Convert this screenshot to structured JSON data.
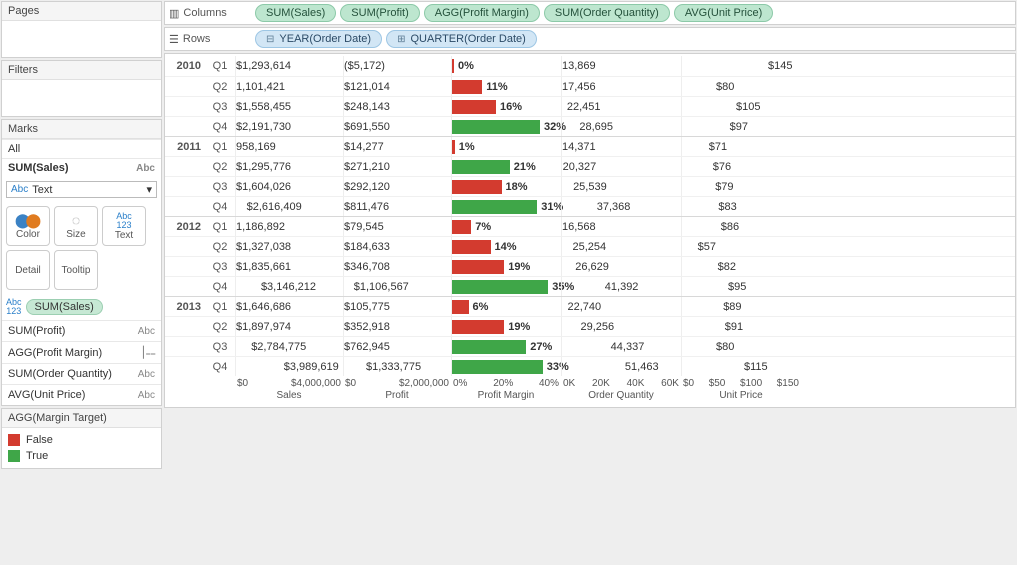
{
  "left": {
    "pages_title": "Pages",
    "filters_title": "Filters",
    "marks_title": "Marks",
    "marks_all": "All",
    "marks_sum_sales": "SUM(Sales)",
    "abc": "Abc",
    "mark_type": "Text",
    "btn_color": "Color",
    "btn_size": "Size",
    "btn_text": "Text",
    "btn_detail": "Detail",
    "btn_tooltip": "Tooltip",
    "text_pill": "SUM(Sales)",
    "agg": [
      {
        "label": "SUM(Profit)",
        "tag": "Abc"
      },
      {
        "label": "AGG(Profit Margin)",
        "tag": "bar"
      },
      {
        "label": "SUM(Order Quantity)",
        "tag": "Abc"
      },
      {
        "label": "AVG(Unit Price)",
        "tag": "Abc"
      }
    ],
    "legend_title": "AGG(Margin Target)",
    "legend_false": "False",
    "legend_true": "True",
    "color_false": "#d33b2f",
    "color_true": "#3fa648"
  },
  "shelves": {
    "columns_label": "Columns",
    "rows_label": "Rows",
    "columns": [
      "SUM(Sales)",
      "SUM(Profit)",
      "AGG(Profit Margin)",
      "SUM(Order Quantity)",
      "AVG(Unit Price)"
    ],
    "rows": [
      "YEAR(Order Date)",
      "QUARTER(Order Date)"
    ]
  },
  "viz": {
    "sales_max": 4000000,
    "profit_max": 2000000,
    "margin_max": 0.4,
    "qty_max": 60000,
    "price_max": 150,
    "margin_threshold": 0.2,
    "colors": {
      "bar_false": "#d33b2f",
      "bar_true": "#3fa648"
    },
    "axis": {
      "sales": {
        "ticks": [
          "$0",
          "$4,000,000"
        ],
        "title": "Sales"
      },
      "profit": {
        "ticks": [
          "$0",
          "$2,000,000"
        ],
        "title": "Profit"
      },
      "margin": {
        "ticks": [
          "0%",
          "20%",
          "40%"
        ],
        "title": "Profit Margin"
      },
      "qty": {
        "ticks": [
          "0K",
          "20K",
          "40K",
          "60K"
        ],
        "title": "Order Quantity"
      },
      "price": {
        "ticks": [
          "$0",
          "$50",
          "$100",
          "$150"
        ],
        "title": "Unit Price"
      }
    },
    "rows": [
      {
        "year": "2010",
        "q": "Q1",
        "sales": 1293614,
        "sales_txt": "$1,293,614",
        "profit": -5172,
        "profit_txt": "($5,172)",
        "margin": 0.0,
        "margin_txt": "0%",
        "qty": 13869,
        "qty_txt": "13,869",
        "price": 145,
        "price_txt": "$145"
      },
      {
        "year": "2010",
        "q": "Q2",
        "sales": 1101421,
        "sales_txt": "1,101,421",
        "profit": 121014,
        "profit_txt": "$121,014",
        "margin": 0.11,
        "margin_txt": "11%",
        "qty": 17456,
        "qty_txt": "17,456",
        "price": 80,
        "price_txt": "$80"
      },
      {
        "year": "2010",
        "q": "Q3",
        "sales": 1558455,
        "sales_txt": "$1,558,455",
        "profit": 248143,
        "profit_txt": "$248,143",
        "margin": 0.16,
        "margin_txt": "16%",
        "qty": 22451,
        "qty_txt": "22,451",
        "price": 105,
        "price_txt": "$105"
      },
      {
        "year": "2010",
        "q": "Q4",
        "sales": 2191730,
        "sales_txt": "$2,191,730",
        "profit": 691550,
        "profit_txt": "$691,550",
        "margin": 0.32,
        "margin_txt": "32%",
        "qty": 28695,
        "qty_txt": "28,695",
        "price": 97,
        "price_txt": "$97"
      },
      {
        "year": "2011",
        "q": "Q1",
        "sales": 958169,
        "sales_txt": "958,169",
        "profit": 14277,
        "profit_txt": "$14,277",
        "margin": 0.01,
        "margin_txt": "1%",
        "qty": 14371,
        "qty_txt": "14,371",
        "price": 71,
        "price_txt": "$71"
      },
      {
        "year": "2011",
        "q": "Q2",
        "sales": 1295776,
        "sales_txt": "$1,295,776",
        "profit": 271210,
        "profit_txt": "$271,210",
        "margin": 0.21,
        "margin_txt": "21%",
        "qty": 20327,
        "qty_txt": "20,327",
        "price": 76,
        "price_txt": "$76"
      },
      {
        "year": "2011",
        "q": "Q3",
        "sales": 1604026,
        "sales_txt": "$1,604,026",
        "profit": 292120,
        "profit_txt": "$292,120",
        "margin": 0.18,
        "margin_txt": "18%",
        "qty": 25539,
        "qty_txt": "25,539",
        "price": 79,
        "price_txt": "$79"
      },
      {
        "year": "2011",
        "q": "Q4",
        "sales": 2616409,
        "sales_txt": "$2,616,409",
        "profit": 811476,
        "profit_txt": "$811,476",
        "margin": 0.31,
        "margin_txt": "31%",
        "qty": 37368,
        "qty_txt": "37,368",
        "price": 83,
        "price_txt": "$83"
      },
      {
        "year": "2012",
        "q": "Q1",
        "sales": 1186892,
        "sales_txt": "1,186,892",
        "profit": 79545,
        "profit_txt": "$79,545",
        "margin": 0.07,
        "margin_txt": "7%",
        "qty": 16568,
        "qty_txt": "16,568",
        "price": 86,
        "price_txt": "$86"
      },
      {
        "year": "2012",
        "q": "Q2",
        "sales": 1327038,
        "sales_txt": "$1,327,038",
        "profit": 184633,
        "profit_txt": "$184,633",
        "margin": 0.14,
        "margin_txt": "14%",
        "qty": 25254,
        "qty_txt": "25,254",
        "price": 57,
        "price_txt": "$57"
      },
      {
        "year": "2012",
        "q": "Q3",
        "sales": 1835661,
        "sales_txt": "$1,835,661",
        "profit": 346708,
        "profit_txt": "$346,708",
        "margin": 0.19,
        "margin_txt": "19%",
        "qty": 26629,
        "qty_txt": "26,629",
        "price": 82,
        "price_txt": "$82"
      },
      {
        "year": "2012",
        "q": "Q4",
        "sales": 3146212,
        "sales_txt": "$3,146,212",
        "profit": 1106567,
        "profit_txt": "$1,106,567",
        "margin": 0.35,
        "margin_txt": "35%",
        "qty": 41392,
        "qty_txt": "41,392",
        "price": 95,
        "price_txt": "$95"
      },
      {
        "year": "2013",
        "q": "Q1",
        "sales": 1646686,
        "sales_txt": "$1,646,686",
        "profit": 105775,
        "profit_txt": "$105,775",
        "margin": 0.06,
        "margin_txt": "6%",
        "qty": 22740,
        "qty_txt": "22,740",
        "price": 89,
        "price_txt": "$89"
      },
      {
        "year": "2013",
        "q": "Q2",
        "sales": 1897974,
        "sales_txt": "$1,897,974",
        "profit": 352918,
        "profit_txt": "$352,918",
        "margin": 0.19,
        "margin_txt": "19%",
        "qty": 29256,
        "qty_txt": "29,256",
        "price": 91,
        "price_txt": "$91"
      },
      {
        "year": "2013",
        "q": "Q3",
        "sales": 2784775,
        "sales_txt": "$2,784,775",
        "profit": 762945,
        "profit_txt": "$762,945",
        "margin": 0.27,
        "margin_txt": "27%",
        "qty": 44337,
        "qty_txt": "44,337",
        "price": 80,
        "price_txt": "$80"
      },
      {
        "year": "2013",
        "q": "Q4",
        "sales": 3989619,
        "sales_txt": "$3,989,619",
        "profit": 1333775,
        "profit_txt": "$1,333,775",
        "margin": 0.33,
        "margin_txt": "33%",
        "qty": 51463,
        "qty_txt": "51,463",
        "price": 115,
        "price_txt": "$115"
      }
    ]
  }
}
